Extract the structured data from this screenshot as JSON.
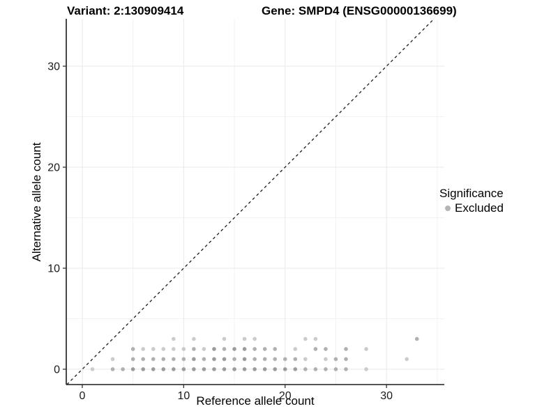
{
  "titles": {
    "variant": "Variant: 2:130909414",
    "gene": "Gene: SMPD4 (ENSG00000136699)"
  },
  "legend": {
    "title": "Significance",
    "items": [
      {
        "label": "Excluded",
        "color": "#b5b5b5"
      }
    ]
  },
  "chart_data": {
    "type": "scatter",
    "title_left": "Variant: 2:130909414",
    "title_right": "Gene: SMPD4 (ENSG00000136699)",
    "xlabel": "Reference allele count",
    "ylabel": "Alternative allele count",
    "xlim": [
      -1.58,
      35.7
    ],
    "ylim": [
      -1.52,
      34.69
    ],
    "x_ticks": [
      0,
      10,
      20,
      30
    ],
    "y_ticks": [
      0,
      10,
      20,
      30
    ],
    "minor_x_ticks": [
      5,
      15,
      25,
      35
    ],
    "minor_y_ticks": [
      5,
      15,
      25
    ],
    "grid": "on",
    "legend_position": "right",
    "identity_line": {
      "type": "y=x",
      "style": "dashed",
      "color": "#1a1a1a"
    },
    "shade_colors": {
      "1": "#cbcbcb",
      "2": "#b0b0b0",
      "3": "#9c9c9c"
    },
    "series": [
      {
        "name": "Excluded",
        "points_format": [
          "x",
          "y",
          "shade"
        ],
        "points": [
          [
            1,
            0,
            1
          ],
          [
            3,
            0,
            2
          ],
          [
            4,
            0,
            2
          ],
          [
            5,
            0,
            3
          ],
          [
            6,
            0,
            3
          ],
          [
            7,
            0,
            3
          ],
          [
            8,
            0,
            3
          ],
          [
            9,
            0,
            3
          ],
          [
            10,
            0,
            3
          ],
          [
            11,
            0,
            3
          ],
          [
            12,
            0,
            3
          ],
          [
            13,
            0,
            3
          ],
          [
            14,
            0,
            3
          ],
          [
            15,
            0,
            3
          ],
          [
            16,
            0,
            3
          ],
          [
            17,
            0,
            3
          ],
          [
            18,
            0,
            3
          ],
          [
            19,
            0,
            3
          ],
          [
            20,
            0,
            3
          ],
          [
            21,
            0,
            3
          ],
          [
            22,
            0,
            2
          ],
          [
            23,
            0,
            2
          ],
          [
            24,
            0,
            2
          ],
          [
            25,
            0,
            2
          ],
          [
            26,
            0,
            2
          ],
          [
            28,
            0,
            1
          ],
          [
            3,
            1,
            1
          ],
          [
            5,
            1,
            2
          ],
          [
            6,
            1,
            2
          ],
          [
            7,
            1,
            2
          ],
          [
            8,
            1,
            2
          ],
          [
            9,
            1,
            2
          ],
          [
            10,
            1,
            2
          ],
          [
            11,
            1,
            3
          ],
          [
            12,
            1,
            2
          ],
          [
            13,
            1,
            3
          ],
          [
            14,
            1,
            3
          ],
          [
            15,
            1,
            2
          ],
          [
            16,
            1,
            3
          ],
          [
            17,
            1,
            2
          ],
          [
            18,
            1,
            2
          ],
          [
            19,
            1,
            2
          ],
          [
            20,
            1,
            2
          ],
          [
            21,
            1,
            2
          ],
          [
            22,
            1,
            1
          ],
          [
            24,
            1,
            1
          ],
          [
            25,
            1,
            2
          ],
          [
            26,
            1,
            2
          ],
          [
            32,
            1,
            1
          ],
          [
            5,
            2,
            2
          ],
          [
            6,
            2,
            1
          ],
          [
            7,
            2,
            1
          ],
          [
            8,
            2,
            1
          ],
          [
            9,
            2,
            1
          ],
          [
            10,
            2,
            1
          ],
          [
            11,
            2,
            2
          ],
          [
            12,
            2,
            1
          ],
          [
            13,
            2,
            3
          ],
          [
            14,
            2,
            2
          ],
          [
            15,
            2,
            3
          ],
          [
            16,
            2,
            3
          ],
          [
            17,
            2,
            2
          ],
          [
            18,
            2,
            2
          ],
          [
            19,
            2,
            2
          ],
          [
            21,
            2,
            1
          ],
          [
            23,
            2,
            2
          ],
          [
            24,
            2,
            2
          ],
          [
            26,
            2,
            2
          ],
          [
            28,
            2,
            1
          ],
          [
            9,
            3,
            1
          ],
          [
            11,
            3,
            1
          ],
          [
            14,
            3,
            1
          ],
          [
            16,
            3,
            1
          ],
          [
            17,
            3,
            1
          ],
          [
            22,
            3,
            1
          ],
          [
            23,
            3,
            1
          ],
          [
            33,
            3,
            2
          ]
        ]
      }
    ]
  }
}
